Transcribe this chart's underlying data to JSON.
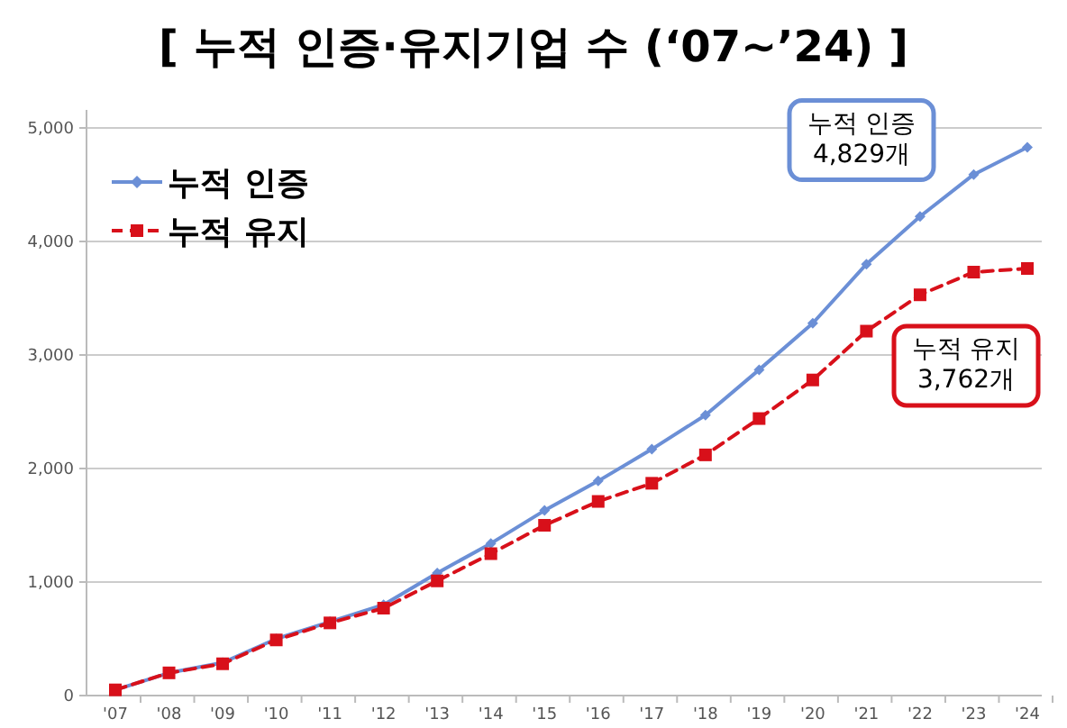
{
  "chart_data": {
    "type": "line",
    "title": "[ 누적 인증·유지기업 수 (‘07~’24) ]",
    "categories": [
      "'07",
      "'08",
      "'09",
      "'10",
      "'11",
      "'12",
      "'13",
      "'14",
      "'15",
      "'16",
      "'17",
      "'18",
      "'19",
      "'20",
      "'21",
      "'22",
      "'23",
      "'24"
    ],
    "series": [
      {
        "name": "누적 인증",
        "color": "#6b8fd6",
        "marker": "diamond",
        "line_style": "solid",
        "values": [
          50,
          200,
          290,
          500,
          650,
          800,
          1080,
          1340,
          1630,
          1890,
          2170,
          2470,
          2870,
          3280,
          3800,
          4220,
          4590,
          4829
        ]
      },
      {
        "name": "누적 유지",
        "color": "#d8101a",
        "marker": "square",
        "line_style": "dashed",
        "values": [
          50,
          200,
          280,
          490,
          640,
          770,
          1010,
          1250,
          1500,
          1710,
          1870,
          2120,
          2440,
          2780,
          3210,
          3530,
          3730,
          3762
        ]
      }
    ],
    "ylim": [
      0,
      5000
    ],
    "yticks": [
      {
        "value": 0,
        "label": "0"
      },
      {
        "value": 1000,
        "label": "1,000"
      },
      {
        "value": 2000,
        "label": "2,000"
      },
      {
        "value": 3000,
        "label": "3,000"
      },
      {
        "value": 4000,
        "label": "4,000"
      },
      {
        "value": 5000,
        "label": "5,000"
      }
    ],
    "grid": "y",
    "legend": "top left",
    "annotations": [
      "누적 인증\n4,829개",
      "누적 유지\n3,762개"
    ]
  }
}
